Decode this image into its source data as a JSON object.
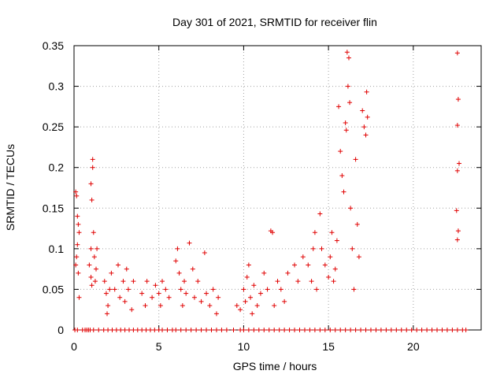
{
  "chart_data": {
    "type": "scatter",
    "title": "Day 301 of 2021, SRMTID for receiver flin",
    "xlabel": "GPS time / hours",
    "ylabel": "SRMTID / TECUs",
    "xlim": [
      0,
      24
    ],
    "ylim": [
      0,
      0.35
    ],
    "xticks": [
      0,
      5,
      10,
      15,
      20
    ],
    "xtick_labels": [
      "0",
      "5",
      "10",
      "15",
      "20"
    ],
    "yticks": [
      0,
      0.05,
      0.1,
      0.15,
      0.2,
      0.25,
      0.3,
      0.35
    ],
    "ytick_labels": [
      "0",
      "0.05",
      "0.1",
      "0.15",
      "0.2",
      "0.25",
      "0.3",
      "0.35"
    ],
    "grid": true,
    "marker": "plus",
    "series": [
      {
        "name": "SRMTID",
        "color": "#e00000",
        "points": [
          [
            0.1,
            0.17
          ],
          [
            0.15,
            0.165
          ],
          [
            0.2,
            0.14
          ],
          [
            0.25,
            0.13
          ],
          [
            0.2,
            0.105
          ],
          [
            0.1,
            0.08
          ],
          [
            0.25,
            0.07
          ],
          [
            0.3,
            0.04
          ],
          [
            0.15,
            0.09
          ],
          [
            0.3,
            0.12
          ],
          [
            0.9,
            0.08
          ],
          [
            1.0,
            0.065
          ],
          [
            1.05,
            0.055
          ],
          [
            1.1,
            0.21
          ],
          [
            1.1,
            0.2
          ],
          [
            1.0,
            0.18
          ],
          [
            1.05,
            0.16
          ],
          [
            1.15,
            0.12
          ],
          [
            1.0,
            0.1
          ],
          [
            1.2,
            0.09
          ],
          [
            1.3,
            0.075
          ],
          [
            1.25,
            0.06
          ],
          [
            1.35,
            0.1
          ],
          [
            1.8,
            0.06
          ],
          [
            1.9,
            0.045
          ],
          [
            2.0,
            0.03
          ],
          [
            2.1,
            0.05
          ],
          [
            1.95,
            0.02
          ],
          [
            2.2,
            0.07
          ],
          [
            2.4,
            0.05
          ],
          [
            2.6,
            0.08
          ],
          [
            2.7,
            0.04
          ],
          [
            2.9,
            0.06
          ],
          [
            3.0,
            0.035
          ],
          [
            3.1,
            0.075
          ],
          [
            3.2,
            0.05
          ],
          [
            3.4,
            0.025
          ],
          [
            3.5,
            0.06
          ],
          [
            4.0,
            0.045
          ],
          [
            4.2,
            0.03
          ],
          [
            4.3,
            0.06
          ],
          [
            4.6,
            0.04
          ],
          [
            4.8,
            0.055
          ],
          [
            5.0,
            0.045
          ],
          [
            5.1,
            0.03
          ],
          [
            5.2,
            0.06
          ],
          [
            5.4,
            0.05
          ],
          [
            5.6,
            0.04
          ],
          [
            6.0,
            0.085
          ],
          [
            6.1,
            0.1
          ],
          [
            6.2,
            0.07
          ],
          [
            6.3,
            0.05
          ],
          [
            6.4,
            0.03
          ],
          [
            6.5,
            0.06
          ],
          [
            6.6,
            0.045
          ],
          [
            6.8,
            0.107
          ],
          [
            7.0,
            0.075
          ],
          [
            7.1,
            0.04
          ],
          [
            7.3,
            0.06
          ],
          [
            7.5,
            0.035
          ],
          [
            7.7,
            0.095
          ],
          [
            7.8,
            0.045
          ],
          [
            8.0,
            0.03
          ],
          [
            8.2,
            0.05
          ],
          [
            8.4,
            0.02
          ],
          [
            8.5,
            0.04
          ],
          [
            9.6,
            0.03
          ],
          [
            9.8,
            0.025
          ],
          [
            10.0,
            0.05
          ],
          [
            10.1,
            0.035
          ],
          [
            10.2,
            0.065
          ],
          [
            10.3,
            0.08
          ],
          [
            10.4,
            0.04
          ],
          [
            10.5,
            0.02
          ],
          [
            10.6,
            0.055
          ],
          [
            10.8,
            0.03
          ],
          [
            11.0,
            0.045
          ],
          [
            11.2,
            0.07
          ],
          [
            11.4,
            0.05
          ],
          [
            11.6,
            0.122
          ],
          [
            11.7,
            0.12
          ],
          [
            11.8,
            0.03
          ],
          [
            12.0,
            0.06
          ],
          [
            12.2,
            0.05
          ],
          [
            12.4,
            0.035
          ],
          [
            12.6,
            0.07
          ],
          [
            13.0,
            0.08
          ],
          [
            13.2,
            0.06
          ],
          [
            13.5,
            0.09
          ],
          [
            13.8,
            0.08
          ],
          [
            14.0,
            0.06
          ],
          [
            14.1,
            0.1
          ],
          [
            14.2,
            0.12
          ],
          [
            14.3,
            0.05
          ],
          [
            14.5,
            0.143
          ],
          [
            14.6,
            0.1
          ],
          [
            14.8,
            0.08
          ],
          [
            15.0,
            0.065
          ],
          [
            15.1,
            0.09
          ],
          [
            15.2,
            0.12
          ],
          [
            15.3,
            0.06
          ],
          [
            15.4,
            0.075
          ],
          [
            15.5,
            0.11
          ],
          [
            15.6,
            0.275
          ],
          [
            15.7,
            0.22
          ],
          [
            15.8,
            0.19
          ],
          [
            15.9,
            0.17
          ],
          [
            16.0,
            0.255
          ],
          [
            16.05,
            0.246
          ],
          [
            16.1,
            0.342
          ],
          [
            16.2,
            0.335
          ],
          [
            16.15,
            0.3
          ],
          [
            16.25,
            0.28
          ],
          [
            16.3,
            0.15
          ],
          [
            16.4,
            0.1
          ],
          [
            16.5,
            0.05
          ],
          [
            16.6,
            0.21
          ],
          [
            16.7,
            0.13
          ],
          [
            16.8,
            0.09
          ],
          [
            17.0,
            0.27
          ],
          [
            17.1,
            0.25
          ],
          [
            17.2,
            0.24
          ],
          [
            17.25,
            0.293
          ],
          [
            17.3,
            0.262
          ],
          [
            22.6,
            0.341
          ],
          [
            22.65,
            0.284
          ],
          [
            22.6,
            0.252
          ],
          [
            22.7,
            0.205
          ],
          [
            22.6,
            0.196
          ],
          [
            22.55,
            0.147
          ],
          [
            22.65,
            0.122
          ],
          [
            22.6,
            0.111
          ]
        ],
        "zero_points": [
          0.05,
          0.2,
          0.5,
          0.65,
          0.75,
          0.85,
          0.95,
          1.15,
          1.45,
          1.75,
          2.0,
          2.25,
          2.5,
          2.75,
          3.0,
          3.25,
          3.5,
          3.75,
          4.0,
          4.25,
          4.5,
          4.75,
          5.0,
          5.2,
          5.5,
          5.8,
          6.0,
          6.3,
          6.6,
          6.9,
          7.2,
          7.5,
          7.8,
          8.1,
          8.4,
          8.7,
          9.0,
          9.4,
          9.8,
          10.0,
          10.3,
          10.6,
          10.9,
          11.2,
          11.5,
          11.8,
          12.1,
          12.4,
          12.7,
          13.0,
          13.3,
          13.6,
          13.9,
          14.2,
          14.5,
          14.8,
          15.1,
          15.4,
          15.7,
          16.0,
          16.3,
          16.6,
          16.9,
          17.2,
          17.5,
          17.8,
          18.1,
          18.4,
          18.7,
          19.0,
          19.3,
          19.6,
          19.9,
          20.2,
          20.5,
          20.8,
          21.1,
          21.4,
          21.7,
          22.0,
          22.3,
          22.6,
          22.9,
          23.1
        ]
      }
    ]
  }
}
